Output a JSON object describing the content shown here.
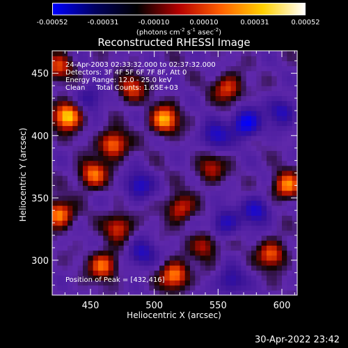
{
  "colorbar": {
    "tick_labels": [
      "-0.00052",
      "-0.00031",
      "-0.00010",
      "0.00010",
      "0.00031",
      "0.00052"
    ],
    "units_prefix": "(photons cm",
    "units_exp1": "-2",
    "units_mid1": " s",
    "units_exp2": "-1",
    "units_mid2": " asec",
    "units_exp3": "-2",
    "units_suffix": ")",
    "colors": [
      "#0000ff",
      "#000060",
      "#000000",
      "#b40000",
      "#ff6000",
      "#ffd000",
      "#ffffff"
    ]
  },
  "chart_data": {
    "type": "heatmap",
    "title": "Reconstructed RHESSI Image",
    "xlabel": "Heliocentric X (arcsec)",
    "ylabel": "Heliocentric Y (arcsec)",
    "xlim": [
      420,
      612
    ],
    "ylim": [
      272,
      468
    ],
    "xticks": [
      450,
      500,
      550,
      600
    ],
    "yticks": [
      300,
      350,
      400,
      450
    ],
    "value_range": [
      -0.00052,
      0.00052
    ],
    "peak_position": [
      432,
      416
    ],
    "bright_sources": [
      {
        "x": 432,
        "y": 416,
        "value": 0.00052
      },
      {
        "x": 508,
        "y": 413,
        "value": 0.00045
      },
      {
        "x": 468,
        "y": 393,
        "value": 0.0004
      },
      {
        "x": 482,
        "y": 438,
        "value": 0.0003
      },
      {
        "x": 558,
        "y": 438,
        "value": 0.00032
      },
      {
        "x": 425,
        "y": 455,
        "value": 0.00028
      },
      {
        "x": 452,
        "y": 369,
        "value": 0.00038
      },
      {
        "x": 425,
        "y": 337,
        "value": 0.00042
      },
      {
        "x": 472,
        "y": 327,
        "value": 0.0003
      },
      {
        "x": 520,
        "y": 342,
        "value": 0.0003
      },
      {
        "x": 460,
        "y": 296,
        "value": 0.00038
      },
      {
        "x": 516,
        "y": 288,
        "value": 0.00042
      },
      {
        "x": 540,
        "y": 312,
        "value": 0.00025
      },
      {
        "x": 592,
        "y": 305,
        "value": 0.00035
      },
      {
        "x": 604,
        "y": 360,
        "value": 0.0004
      },
      {
        "x": 544,
        "y": 374,
        "value": 0.00025
      }
    ],
    "dark_regions": [
      {
        "x": 572,
        "y": 410,
        "value": -0.00045
      },
      {
        "x": 548,
        "y": 400,
        "value": -0.0003
      },
      {
        "x": 580,
        "y": 340,
        "value": -0.00032
      },
      {
        "x": 555,
        "y": 330,
        "value": -0.00028
      },
      {
        "x": 488,
        "y": 360,
        "value": -0.0003
      },
      {
        "x": 490,
        "y": 305,
        "value": -0.00028
      },
      {
        "x": 560,
        "y": 283,
        "value": -0.00025
      },
      {
        "x": 600,
        "y": 420,
        "value": -0.00028
      },
      {
        "x": 450,
        "y": 430,
        "value": -0.00022
      }
    ]
  },
  "annotations": {
    "line1": "24-Apr-2003 02:33:32.000 to 02:37:32.000",
    "line2": "Detectors: 3F 4F 5F 6F 7F 8F, Att 0",
    "line3": "Energy Range: 12.0 - 25.0 keV",
    "line4": "Clean     Total Counts: 1.65E+03",
    "peak": "Position of Peak = [432,416]"
  },
  "timestamp": "30-Apr-2022 23:42"
}
